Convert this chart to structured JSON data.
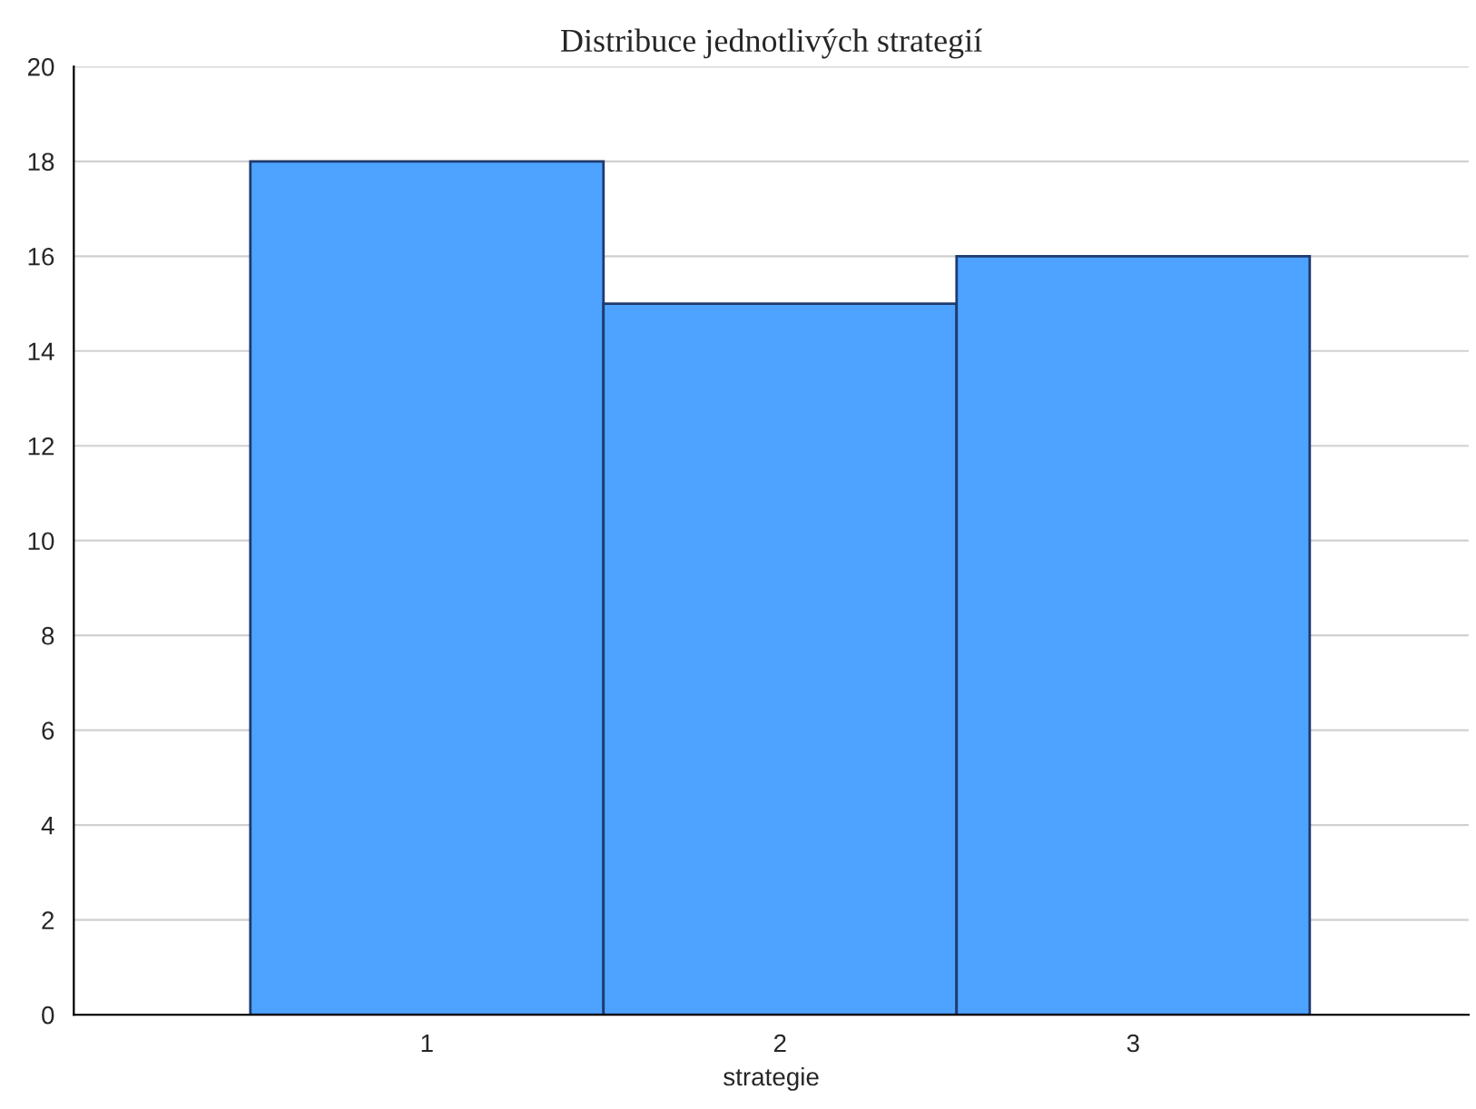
{
  "chart_data": {
    "type": "bar",
    "title": "Distribuce jednotlivých strategií",
    "xlabel": "strategie",
    "categories": [
      "1",
      "2",
      "3"
    ],
    "values": [
      18,
      15,
      16
    ],
    "color": "#4da3ff",
    "ylim": [
      0,
      20
    ],
    "yticks": [
      0,
      2,
      4,
      6,
      8,
      10,
      12,
      14,
      16,
      18,
      20
    ],
    "grid": "y",
    "legend": false
  }
}
